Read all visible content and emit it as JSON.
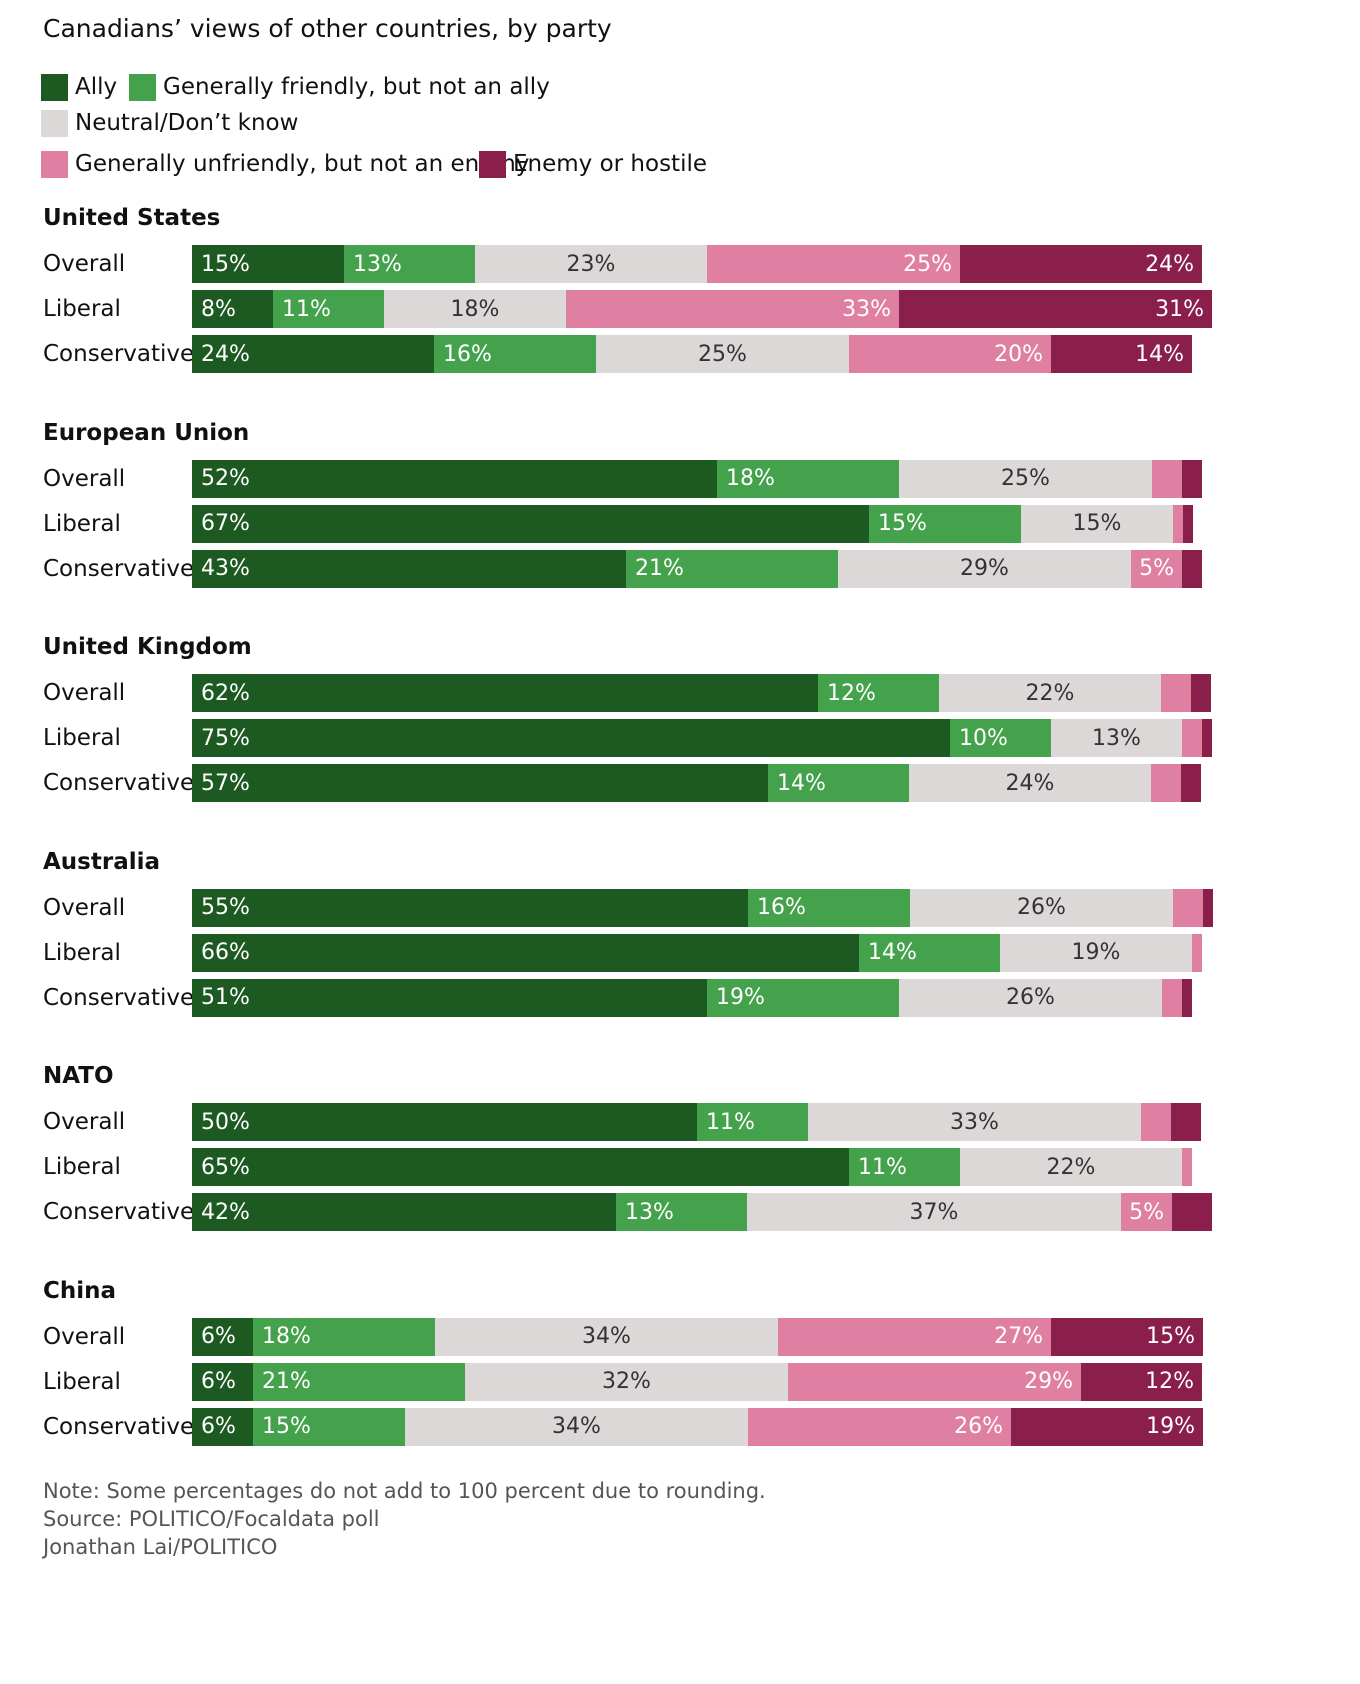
{
  "title": "Canadians’ views of other countries, by party",
  "legend": [
    {
      "label": "Ally",
      "color": "#1d5a22"
    },
    {
      "label": "Generally friendly, but not an ally",
      "color": "#45a24c"
    },
    {
      "label": "Neutral/Don’t know",
      "color": "#dbd8d7"
    },
    {
      "label": "Generally unfriendly, but not an enemy",
      "color": "#df7fa1"
    },
    {
      "label": "Enemy or hostile",
      "color": "#8b1f4b"
    }
  ],
  "chart_data": {
    "type": "bar",
    "orientation": "horizontal",
    "stacked": true,
    "title": "Canadians’ views of other countries, by party",
    "categories_order": [
      "Overall",
      "Liberal",
      "Conservative"
    ],
    "series_names": [
      "Ally",
      "Generally friendly, but not an ally",
      "Neutral/Don’t know",
      "Generally unfriendly, but not an enemy",
      "Enemy or hostile"
    ],
    "groups": [
      {
        "name": "United States",
        "rows": [
          {
            "label": "Overall",
            "values": [
              15,
              13,
              23,
              25,
              24
            ],
            "value_labels": [
              "15%",
              "13%",
              "23%",
              "25%",
              "24%"
            ]
          },
          {
            "label": "Liberal",
            "values": [
              8,
              11,
              18,
              33,
              31
            ],
            "value_labels": [
              "8%",
              "11%",
              "18%",
              "33%",
              "31%"
            ]
          },
          {
            "label": "Conservative",
            "values": [
              24,
              16,
              25,
              20,
              14
            ],
            "value_labels": [
              "24%",
              "16%",
              "25%",
              "20%",
              "14%"
            ]
          }
        ]
      },
      {
        "name": "European Union",
        "rows": [
          {
            "label": "Overall",
            "values": [
              52,
              18,
              25,
              3,
              2
            ],
            "value_labels": [
              "52%",
              "18%",
              "25%",
              "",
              ""
            ]
          },
          {
            "label": "Liberal",
            "values": [
              67,
              15,
              15,
              1,
              1
            ],
            "value_labels": [
              "67%",
              "15%",
              "15%",
              "",
              ""
            ]
          },
          {
            "label": "Conservative",
            "values": [
              43,
              21,
              29,
              5,
              2
            ],
            "value_labels": [
              "43%",
              "21%",
              "29%",
              "5%",
              ""
            ]
          }
        ]
      },
      {
        "name": "United Kingdom",
        "rows": [
          {
            "label": "Overall",
            "values": [
              62,
              12,
              22,
              3,
              2
            ],
            "value_labels": [
              "62%",
              "12%",
              "22%",
              "",
              ""
            ]
          },
          {
            "label": "Liberal",
            "values": [
              75,
              10,
              13,
              2,
              1
            ],
            "value_labels": [
              "75%",
              "10%",
              "13%",
              "",
              ""
            ]
          },
          {
            "label": "Conservative",
            "values": [
              57,
              14,
              24,
              3,
              2
            ],
            "value_labels": [
              "57%",
              "14%",
              "24%",
              "",
              ""
            ]
          }
        ]
      },
      {
        "name": "Australia",
        "rows": [
          {
            "label": "Overall",
            "values": [
              55,
              16,
              26,
              3,
              1
            ],
            "value_labels": [
              "55%",
              "16%",
              "26%",
              "",
              ""
            ]
          },
          {
            "label": "Liberal",
            "values": [
              66,
              14,
              19,
              1,
              0
            ],
            "value_labels": [
              "66%",
              "14%",
              "19%",
              "",
              ""
            ]
          },
          {
            "label": "Conservative",
            "values": [
              51,
              19,
              26,
              2,
              1
            ],
            "value_labels": [
              "51%",
              "19%",
              "26%",
              "",
              ""
            ]
          }
        ]
      },
      {
        "name": "NATO",
        "rows": [
          {
            "label": "Overall",
            "values": [
              50,
              11,
              33,
              3,
              3
            ],
            "value_labels": [
              "50%",
              "11%",
              "33%",
              "",
              ""
            ]
          },
          {
            "label": "Liberal",
            "values": [
              65,
              11,
              22,
              1,
              0
            ],
            "value_labels": [
              "65%",
              "11%",
              "22%",
              "",
              ""
            ]
          },
          {
            "label": "Conservative",
            "values": [
              42,
              13,
              37,
              5,
              4
            ],
            "value_labels": [
              "42%",
              "13%",
              "37%",
              "5%",
              ""
            ]
          }
        ]
      },
      {
        "name": "China",
        "rows": [
          {
            "label": "Overall",
            "values": [
              6,
              18,
              34,
              27,
              15
            ],
            "value_labels": [
              "6%",
              "18%",
              "34%",
              "27%",
              "15%"
            ]
          },
          {
            "label": "Liberal",
            "values": [
              6,
              21,
              32,
              29,
              12
            ],
            "value_labels": [
              "6%",
              "21%",
              "32%",
              "29%",
              "12%"
            ]
          },
          {
            "label": "Conservative",
            "values": [
              6,
              15,
              34,
              26,
              19
            ],
            "value_labels": [
              "6%",
              "15%",
              "34%",
              "26%",
              "19%"
            ]
          }
        ]
      }
    ],
    "xlim": [
      0,
      100
    ]
  },
  "footer": {
    "note": "Note: Some percentages do not add to 100 percent due to rounding.",
    "source": "Source: POLITICO/Focaldata poll",
    "credit": "Jonathan Lai/POLITICO"
  }
}
